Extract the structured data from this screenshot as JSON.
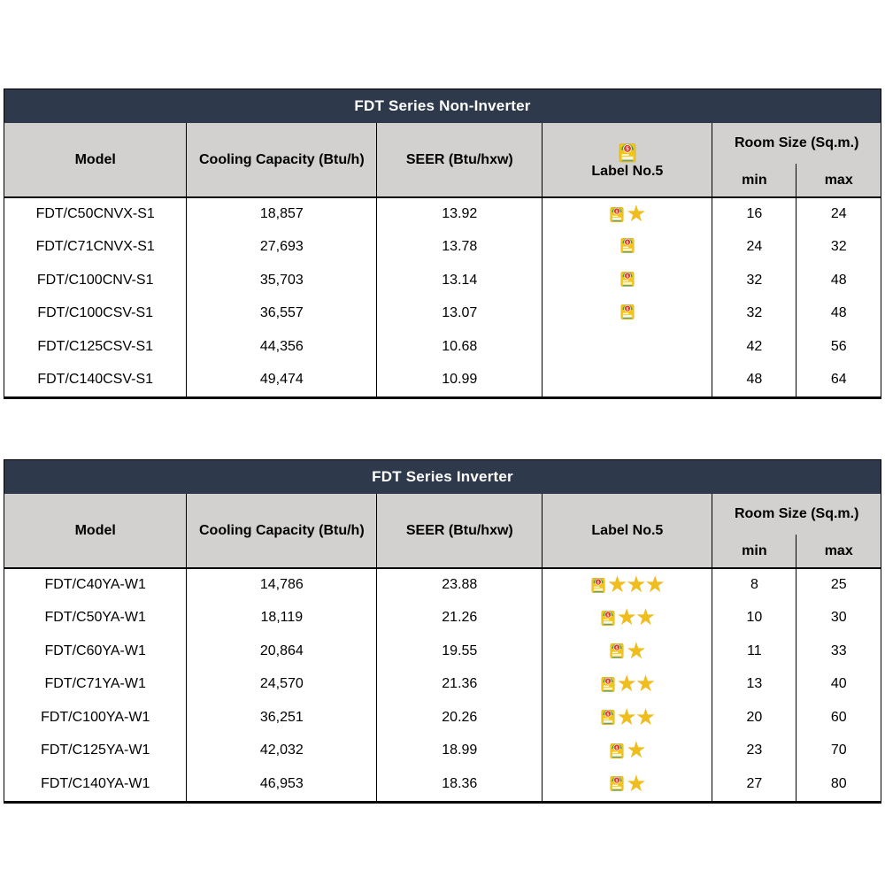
{
  "icons": {
    "star": "★",
    "energy_label": "energy-label-no5-icon"
  },
  "colors": {
    "title_bar_bg": "#2e3a4c",
    "title_bar_text": "#ffffff",
    "header_row_bg": "#d2d1cf",
    "border": "#000000",
    "star_gold": "#f0bd1f",
    "label_yellow": "#f3c517",
    "label_green": "#2e9e4c",
    "label_red": "#e03b24"
  },
  "columns": {
    "model": "Model",
    "cooling": "Cooling Capacity (Btu/h)",
    "seer": "SEER (Btu/hxw)",
    "label": "Label No.5",
    "room": "Room Size (Sq.m.)",
    "min": "min",
    "max": "max"
  },
  "tables": [
    {
      "title": "FDT Series Non-Inverter",
      "header_label_has_icon": true,
      "rows": [
        {
          "model": "FDT/C50CNVX-S1",
          "cooling": "18,857",
          "seer": "13.92",
          "label_icon": true,
          "stars": 1,
          "min": "16",
          "max": "24"
        },
        {
          "model": "FDT/C71CNVX-S1",
          "cooling": "27,693",
          "seer": "13.78",
          "label_icon": true,
          "stars": 0,
          "min": "24",
          "max": "32"
        },
        {
          "model": "FDT/C100CNV-S1",
          "cooling": "35,703",
          "seer": "13.14",
          "label_icon": true,
          "stars": 0,
          "min": "32",
          "max": "48"
        },
        {
          "model": "FDT/C100CSV-S1",
          "cooling": "36,557",
          "seer": "13.07",
          "label_icon": true,
          "stars": 0,
          "min": "32",
          "max": "48"
        },
        {
          "model": "FDT/C125CSV-S1",
          "cooling": "44,356",
          "seer": "10.68",
          "label_icon": false,
          "stars": 0,
          "min": "42",
          "max": "56"
        },
        {
          "model": "FDT/C140CSV-S1",
          "cooling": "49,474",
          "seer": "10.99",
          "label_icon": false,
          "stars": 0,
          "min": "48",
          "max": "64"
        }
      ]
    },
    {
      "title": "FDT Series Inverter",
      "header_label_has_icon": false,
      "rows": [
        {
          "model": "FDT/C40YA-W1",
          "cooling": "14,786",
          "seer": "23.88",
          "label_icon": true,
          "stars": 3,
          "min": "8",
          "max": "25"
        },
        {
          "model": "FDT/C50YA-W1",
          "cooling": "18,119",
          "seer": "21.26",
          "label_icon": true,
          "stars": 2,
          "min": "10",
          "max": "30"
        },
        {
          "model": "FDT/C60YA-W1",
          "cooling": "20,864",
          "seer": "19.55",
          "label_icon": true,
          "stars": 1,
          "min": "11",
          "max": "33"
        },
        {
          "model": "FDT/C71YA-W1",
          "cooling": "24,570",
          "seer": "21.36",
          "label_icon": true,
          "stars": 2,
          "min": "13",
          "max": "40"
        },
        {
          "model": "FDT/C100YA-W1",
          "cooling": "36,251",
          "seer": "20.26",
          "label_icon": true,
          "stars": 2,
          "min": "20",
          "max": "60"
        },
        {
          "model": "FDT/C125YA-W1",
          "cooling": "42,032",
          "seer": "18.99",
          "label_icon": true,
          "stars": 1,
          "min": "23",
          "max": "70"
        },
        {
          "model": "FDT/C140YA-W1",
          "cooling": "46,953",
          "seer": "18.36",
          "label_icon": true,
          "stars": 1,
          "min": "27",
          "max": "80"
        }
      ]
    }
  ]
}
